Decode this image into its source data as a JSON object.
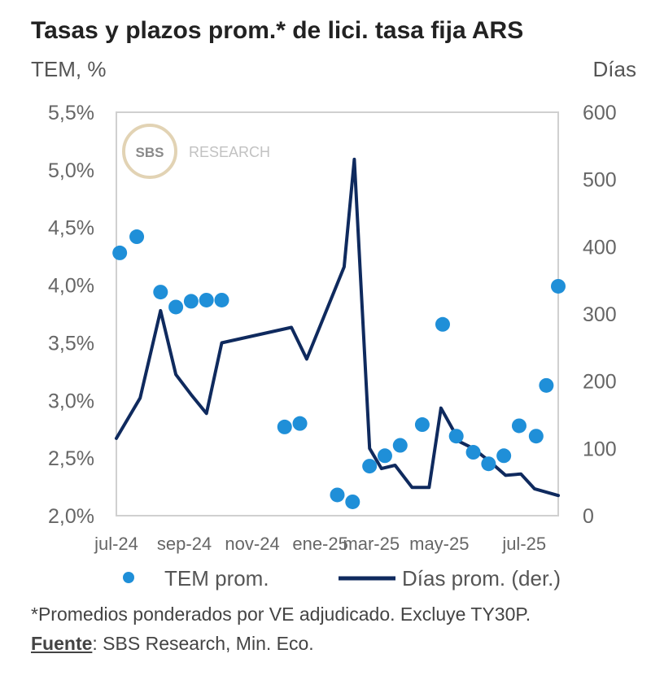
{
  "chart_data": {
    "type": "line+scatter",
    "title": "Tasas y plazos prom.* de lici. tasa fija ARS",
    "ylabel_left": "TEM, %",
    "ylabel_right": "Días",
    "ylim_left": [
      2.0,
      5.5
    ],
    "ylim_right": [
      0,
      600
    ],
    "yticks_left": [
      "5,5%",
      "5,0%",
      "4,5%",
      "4,0%",
      "3,5%",
      "3,0%",
      "2,5%",
      "2,0%"
    ],
    "yticks_right": [
      "600",
      "500",
      "400",
      "300",
      "200",
      "100",
      "0"
    ],
    "x_range": [
      0,
      13
    ],
    "x_ticks": [
      {
        "x": 0,
        "label": "jul-24"
      },
      {
        "x": 2,
        "label": "sep-24"
      },
      {
        "x": 4,
        "label": "nov-24"
      },
      {
        "x": 6,
        "label": "ene-25"
      },
      {
        "x": 7.5,
        "label": "mar-25"
      },
      {
        "x": 9.5,
        "label": "may-25"
      },
      {
        "x": 12,
        "label": "jul-25"
      }
    ],
    "series": [
      {
        "name": "TEM prom.",
        "kind": "scatter",
        "axis": "left",
        "color": "#1f8fd8",
        "points": [
          {
            "x": 0.1,
            "y": 4.28
          },
          {
            "x": 0.6,
            "y": 4.42
          },
          {
            "x": 1.3,
            "y": 3.94
          },
          {
            "x": 1.75,
            "y": 3.81
          },
          {
            "x": 2.2,
            "y": 3.86
          },
          {
            "x": 2.65,
            "y": 3.87
          },
          {
            "x": 3.1,
            "y": 3.87
          },
          {
            "x": 4.95,
            "y": 2.77
          },
          {
            "x": 5.4,
            "y": 2.8
          },
          {
            "x": 6.5,
            "y": 2.18
          },
          {
            "x": 6.95,
            "y": 2.12
          },
          {
            "x": 7.45,
            "y": 2.43
          },
          {
            "x": 7.9,
            "y": 2.52
          },
          {
            "x": 8.35,
            "y": 2.61
          },
          {
            "x": 9.0,
            "y": 2.79
          },
          {
            "x": 9.6,
            "y": 3.66
          },
          {
            "x": 10.0,
            "y": 2.69
          },
          {
            "x": 10.5,
            "y": 2.55
          },
          {
            "x": 10.95,
            "y": 2.45
          },
          {
            "x": 11.4,
            "y": 2.52
          },
          {
            "x": 11.85,
            "y": 2.78
          },
          {
            "x": 12.35,
            "y": 2.69
          },
          {
            "x": 12.65,
            "y": 3.13
          },
          {
            "x": 13.0,
            "y": 3.99
          }
        ]
      },
      {
        "name": "Días prom. (der.)",
        "kind": "line",
        "axis": "right",
        "color": "#0f2a5e",
        "points": [
          {
            "x": 0,
            "y": 115
          },
          {
            "x": 0.7,
            "y": 175
          },
          {
            "x": 1.3,
            "y": 305
          },
          {
            "x": 1.75,
            "y": 210
          },
          {
            "x": 2.2,
            "y": 180
          },
          {
            "x": 2.65,
            "y": 152
          },
          {
            "x": 3.1,
            "y": 257
          },
          {
            "x": 5.15,
            "y": 280
          },
          {
            "x": 5.6,
            "y": 233
          },
          {
            "x": 6.7,
            "y": 370
          },
          {
            "x": 7.0,
            "y": 530
          },
          {
            "x": 7.45,
            "y": 100
          },
          {
            "x": 7.8,
            "y": 70
          },
          {
            "x": 8.2,
            "y": 75
          },
          {
            "x": 8.7,
            "y": 42
          },
          {
            "x": 9.2,
            "y": 42
          },
          {
            "x": 9.55,
            "y": 160
          },
          {
            "x": 10.1,
            "y": 110
          },
          {
            "x": 10.5,
            "y": 100
          },
          {
            "x": 11.0,
            "y": 80
          },
          {
            "x": 11.45,
            "y": 60
          },
          {
            "x": 11.9,
            "y": 62
          },
          {
            "x": 12.3,
            "y": 40
          },
          {
            "x": 13.0,
            "y": 30
          }
        ]
      }
    ],
    "legend": {
      "placement": "bottom"
    }
  },
  "watermark": {
    "logo_text": "SBS",
    "label": "RESEARCH"
  },
  "footnote": "*Promedios ponderados por VE adjudicado. Excluye TY30P.",
  "source_label": "Fuente",
  "source_text": ": SBS Research, Min. Eco."
}
